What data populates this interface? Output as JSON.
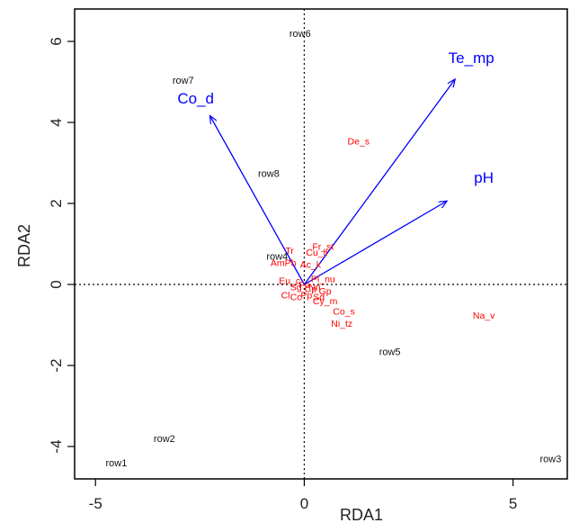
{
  "chart_data": {
    "type": "scatter",
    "title": "",
    "xlabel": "RDA1",
    "ylabel": "RDA2",
    "xlim": [
      -5.5,
      6.3
    ],
    "ylim": [
      -4.8,
      6.8
    ],
    "xticks": [
      -5,
      0,
      5
    ],
    "yticks": [
      -4,
      -2,
      0,
      2,
      4,
      6
    ],
    "reference_lines": {
      "x": 0,
      "y": 0,
      "style": "dotted"
    },
    "grid": false,
    "colors": {
      "sites": "#111111",
      "species": "#ff0000",
      "environment": "#0000ff",
      "axis": "#000000"
    },
    "sites": [
      {
        "label": "row1",
        "x": -4.5,
        "y": -4.4
      },
      {
        "label": "row2",
        "x": -3.35,
        "y": -3.8
      },
      {
        "label": "row3",
        "x": 5.9,
        "y": -4.3
      },
      {
        "label": "row4",
        "x": -0.65,
        "y": 0.7
      },
      {
        "label": "row5",
        "x": 2.05,
        "y": -1.65
      },
      {
        "label": "row6",
        "x": -0.1,
        "y": 6.2
      },
      {
        "label": "row7",
        "x": -2.9,
        "y": 5.05
      },
      {
        "label": "row8",
        "x": -0.85,
        "y": 2.75
      }
    ],
    "species": [
      {
        "label": "De_s",
        "x": 1.3,
        "y": 3.55
      },
      {
        "label": "Na_v",
        "x": 4.3,
        "y": -0.75
      },
      {
        "label": "Co_s",
        "x": 0.95,
        "y": -0.65
      },
      {
        "label": "Ni_tz",
        "x": 0.9,
        "y": -0.95
      },
      {
        "label": "Cy_m",
        "x": 0.5,
        "y": -0.4
      },
      {
        "label": "Fr_st",
        "x": 0.45,
        "y": 0.95
      },
      {
        "label": "Tr",
        "x": -0.35,
        "y": 0.85
      },
      {
        "label": "Cu_ll",
        "x": 0.3,
        "y": 0.8
      },
      {
        "label": "Ac_k",
        "x": 0.15,
        "y": 0.5
      },
      {
        "label": "AmPh",
        "x": -0.5,
        "y": 0.55
      },
      {
        "label": "Pl_nu",
        "x": 0.45,
        "y": 0.15
      },
      {
        "label": "Eu_c",
        "x": -0.35,
        "y": 0.1
      },
      {
        "label": "Fp",
        "x": 0.0,
        "y": 0.0
      },
      {
        "label": "Cp",
        "x": 0.15,
        "y": -0.1
      },
      {
        "label": "Nn",
        "x": 0.25,
        "y": -0.05
      },
      {
        "label": "Gp",
        "x": 0.5,
        "y": -0.15
      },
      {
        "label": "Sg",
        "x": -0.2,
        "y": -0.05
      },
      {
        "label": "Cl",
        "x": -0.45,
        "y": -0.25
      },
      {
        "label": "Cc",
        "x": -0.2,
        "y": -0.3
      },
      {
        "label": "Pp",
        "x": 0.05,
        "y": -0.25
      },
      {
        "label": "Sd",
        "x": 0.35,
        "y": -0.3
      }
    ],
    "environment": [
      {
        "label": "Te_mp",
        "x": 3.6,
        "y": 5.05,
        "label_x": 4.0,
        "label_y": 5.6
      },
      {
        "label": "Co_d",
        "x": -2.25,
        "y": 4.15,
        "label_x": -2.6,
        "label_y": 4.6
      },
      {
        "label": "pH",
        "x": 3.4,
        "y": 2.05,
        "label_x": 4.3,
        "label_y": 2.65
      }
    ]
  }
}
